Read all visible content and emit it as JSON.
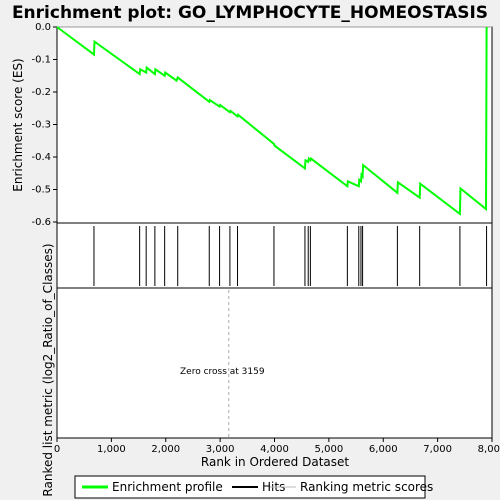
{
  "chart_data": {
    "type": "line",
    "title": "Enrichment plot: GO_LYMPHOCYTE_HOMEOSTASIS",
    "ylabel_top": "Enrichment score (ES)",
    "ylabel_bottom": "Ranked list metric (log2_Ratio_of_Classes)",
    "xlabel": "Rank in Ordered Dataset",
    "xlim": [
      0,
      8000
    ],
    "ylim": [
      -0.6,
      0.0
    ],
    "x_ticks": [
      0,
      1000,
      2000,
      3000,
      4000,
      5000,
      6000,
      7000,
      8000
    ],
    "x_tick_labels": [
      "0",
      "1,000",
      "2,000",
      "3,000",
      "4,000",
      "5,000",
      "6,000",
      "7,000",
      "8,000"
    ],
    "y_ticks": [
      0.0,
      -0.1,
      -0.2,
      -0.3,
      -0.4,
      -0.5,
      -0.6
    ],
    "y_tick_labels": [
      "0.0",
      "-0.1",
      "-0.2",
      "-0.3",
      "-0.4",
      "-0.5",
      "-0.6"
    ],
    "n_genes": 7900,
    "series": [
      {
        "name": "Enrichment profile",
        "color": "#00ff00",
        "x": [
          0,
          680,
          690,
          1520,
          1530,
          1640,
          1650,
          1800,
          1810,
          1980,
          1990,
          2200,
          2220,
          2800,
          2810,
          2990,
          3000,
          3180,
          3190,
          3320,
          3330,
          3990,
          4000,
          4560,
          4570,
          4620,
          4630,
          4660,
          4670,
          5340,
          5350,
          5550,
          5560,
          5590,
          5600,
          5620,
          5630,
          6260,
          6270,
          6670,
          6680,
          7410,
          7420,
          7890,
          7900
        ],
        "y": [
          0.0,
          -0.085,
          -0.045,
          -0.145,
          -0.13,
          -0.14,
          -0.125,
          -0.145,
          -0.13,
          -0.15,
          -0.14,
          -0.165,
          -0.155,
          -0.23,
          -0.225,
          -0.245,
          -0.24,
          -0.262,
          -0.258,
          -0.275,
          -0.27,
          -0.36,
          -0.365,
          -0.435,
          -0.41,
          -0.415,
          -0.405,
          -0.41,
          -0.405,
          -0.49,
          -0.475,
          -0.49,
          -0.47,
          -0.475,
          -0.455,
          -0.46,
          -0.425,
          -0.51,
          -0.478,
          -0.525,
          -0.482,
          -0.575,
          -0.497,
          -0.56,
          0.0
        ]
      }
    ],
    "hits": [
      680,
      1520,
      1640,
      1800,
      1980,
      2220,
      2800,
      2990,
      3180,
      3320,
      3990,
      4560,
      4620,
      4660,
      5340,
      5550,
      5590,
      5620,
      6260,
      6670,
      7410,
      7900
    ],
    "zero_cross": 3159,
    "annotation": "Zero cross at 3159",
    "legend": [
      "Enrichment profile",
      "Hits",
      "Ranking metric scores"
    ]
  }
}
